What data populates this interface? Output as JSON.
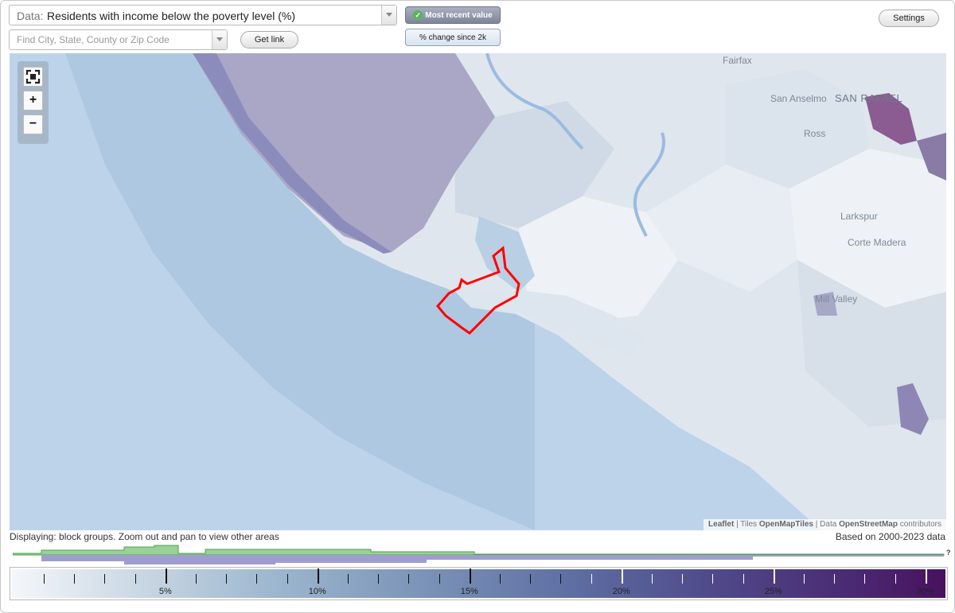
{
  "toolbar": {
    "data_prefix": "Data:",
    "data_value": "Residents with income below the poverty level (%)",
    "search_placeholder": "Find City, State, County or Zip Code",
    "get_link_label": "Get link",
    "settings_label": "Settings",
    "mode_recent_label": "Most recent value",
    "mode_change_label": "% change since 2k",
    "mode_recent_active": true
  },
  "map": {
    "places": [
      "Fairfax",
      "San Anselmo",
      "SAN RAFAEL",
      "Ross",
      "Larkspur",
      "Corte Madera",
      "Mill Valley"
    ],
    "zoom_controls": {
      "fullscreen": "fullscreen-icon",
      "zoom_in": "+",
      "zoom_out": "−"
    },
    "attribution": {
      "leaflet": "Leaflet",
      "sep1": "|",
      "tiles_prefix": "Tiles",
      "tiles_name": "OpenMapTiles",
      "sep2": "|",
      "data_prefix": "Data",
      "data_name": "OpenStreetMap",
      "data_suffix": "contributors"
    },
    "highlight_color": "#ff0000"
  },
  "status": {
    "displaying": "Displaying: block groups. Zoom out and pan to view other areas",
    "based_on": "Based on 2000-2023 data",
    "histogram_marker": "?"
  },
  "legend": {
    "labels": [
      "5%",
      "10%",
      "15%",
      "20%",
      "25%",
      "30%"
    ],
    "colors": {
      "low": "#f4f7fa",
      "mid": "#7991b6",
      "high": "#48115f"
    }
  }
}
